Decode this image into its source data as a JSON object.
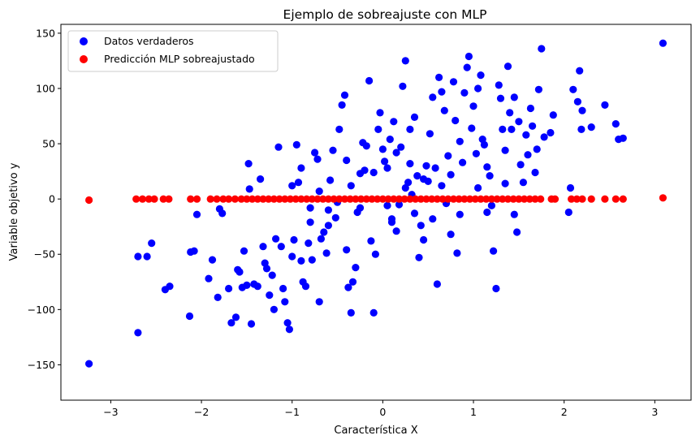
{
  "chart_data": {
    "type": "scatter",
    "title": "Ejemplo de sobreajuste con MLP",
    "xlabel": "Característica X",
    "ylabel": "Variable objetivo y",
    "xlim": [
      -3.55,
      3.4
    ],
    "ylim": [
      -182,
      158
    ],
    "xticks": [
      -3,
      -2,
      -1,
      0,
      1,
      2,
      3
    ],
    "yticks": [
      -150,
      -100,
      -50,
      0,
      50,
      100,
      150
    ],
    "xtick_labels": [
      "−3",
      "−2",
      "−1",
      "0",
      "1",
      "2",
      "3"
    ],
    "ytick_labels": [
      "−150",
      "−100",
      "−50",
      "0",
      "50",
      "100",
      "150"
    ],
    "grid": false,
    "legend_position": "top-left",
    "series": [
      {
        "name": "Datos verdaderos",
        "color": "#0000ff",
        "points": [
          [
            -3.24,
            -149
          ],
          [
            3.09,
            141
          ],
          [
            -2.7,
            -121
          ],
          [
            -2.7,
            -52
          ],
          [
            -2.6,
            -52
          ],
          [
            -2.55,
            -40
          ],
          [
            -2.4,
            -82
          ],
          [
            -2.35,
            -79
          ],
          [
            -2.13,
            -106
          ],
          [
            -2.12,
            -48
          ],
          [
            -2.08,
            -47
          ],
          [
            -2.05,
            -14
          ],
          [
            -1.92,
            -72
          ],
          [
            -1.88,
            -55
          ],
          [
            -1.82,
            -89
          ],
          [
            -1.8,
            -9
          ],
          [
            -1.77,
            -13
          ],
          [
            -1.7,
            -81
          ],
          [
            -1.67,
            -112
          ],
          [
            -1.62,
            -107
          ],
          [
            -1.6,
            -64
          ],
          [
            -1.58,
            -66
          ],
          [
            -1.55,
            -80
          ],
          [
            -1.53,
            -47
          ],
          [
            -1.5,
            -78
          ],
          [
            -1.48,
            32
          ],
          [
            -1.47,
            9
          ],
          [
            -1.45,
            -113
          ],
          [
            -1.42,
            -77
          ],
          [
            -1.38,
            -79
          ],
          [
            -1.35,
            18
          ],
          [
            -1.32,
            -43
          ],
          [
            -1.3,
            -58
          ],
          [
            -1.28,
            -63
          ],
          [
            -1.25,
            -87
          ],
          [
            -1.22,
            -69
          ],
          [
            -1.2,
            -100
          ],
          [
            -1.18,
            -36
          ],
          [
            -1.15,
            47
          ],
          [
            -1.12,
            -43
          ],
          [
            -1.1,
            -81
          ],
          [
            -1.08,
            -93
          ],
          [
            -1.05,
            -112
          ],
          [
            -1.03,
            -118
          ],
          [
            -1.0,
            -52
          ],
          [
            -0.98,
            -37
          ],
          [
            -0.95,
            49
          ],
          [
            -0.93,
            15
          ],
          [
            -0.9,
            -56
          ],
          [
            -0.88,
            -75
          ],
          [
            -0.85,
            -79
          ],
          [
            -0.82,
            -40
          ],
          [
            -0.8,
            -21
          ],
          [
            -0.78,
            -55
          ],
          [
            -0.75,
            42
          ],
          [
            -0.72,
            36
          ],
          [
            -0.7,
            -93
          ],
          [
            -0.68,
            -36
          ],
          [
            -0.65,
            -30
          ],
          [
            -0.62,
            -49
          ],
          [
            -0.6,
            -24
          ],
          [
            -0.58,
            17
          ],
          [
            -0.55,
            44
          ],
          [
            -0.52,
            -17
          ],
          [
            -0.5,
            -3
          ],
          [
            -0.48,
            63
          ],
          [
            -0.45,
            85
          ],
          [
            -0.42,
            94
          ],
          [
            -0.4,
            -46
          ],
          [
            -0.38,
            -80
          ],
          [
            -0.35,
            -103
          ],
          [
            -0.33,
            -75
          ],
          [
            -0.3,
            -62
          ],
          [
            -0.28,
            -12
          ],
          [
            -0.25,
            23
          ],
          [
            -0.22,
            51
          ],
          [
            -0.2,
            26
          ],
          [
            -0.18,
            48
          ],
          [
            -0.15,
            107
          ],
          [
            -0.13,
            -38
          ],
          [
            -0.1,
            -103
          ],
          [
            -0.08,
            -50
          ],
          [
            -0.05,
            63
          ],
          [
            -0.03,
            78
          ],
          [
            0.0,
            45
          ],
          [
            0.02,
            34
          ],
          [
            0.05,
            -6
          ],
          [
            0.08,
            54
          ],
          [
            0.1,
            -21
          ],
          [
            0.12,
            70
          ],
          [
            0.15,
            -29
          ],
          [
            0.18,
            -5
          ],
          [
            0.2,
            47
          ],
          [
            0.22,
            102
          ],
          [
            0.25,
            125
          ],
          [
            0.28,
            15
          ],
          [
            0.3,
            63
          ],
          [
            0.32,
            4
          ],
          [
            0.35,
            74
          ],
          [
            0.38,
            21
          ],
          [
            0.4,
            -53
          ],
          [
            0.42,
            -24
          ],
          [
            0.45,
            -37
          ],
          [
            0.48,
            30
          ],
          [
            0.5,
            16
          ],
          [
            0.52,
            59
          ],
          [
            0.55,
            92
          ],
          [
            0.58,
            28
          ],
          [
            0.6,
            -77
          ],
          [
            0.62,
            110
          ],
          [
            0.65,
            97
          ],
          [
            0.68,
            80
          ],
          [
            0.7,
            -4
          ],
          [
            0.72,
            39
          ],
          [
            0.75,
            -32
          ],
          [
            0.78,
            106
          ],
          [
            0.8,
            71
          ],
          [
            0.82,
            -49
          ],
          [
            0.85,
            52
          ],
          [
            0.88,
            33
          ],
          [
            0.9,
            96
          ],
          [
            0.93,
            119
          ],
          [
            0.95,
            129
          ],
          [
            0.98,
            64
          ],
          [
            1.0,
            84
          ],
          [
            1.03,
            41
          ],
          [
            1.05,
            100
          ],
          [
            1.08,
            112
          ],
          [
            1.1,
            54
          ],
          [
            1.12,
            49
          ],
          [
            1.15,
            29
          ],
          [
            1.18,
            21
          ],
          [
            1.2,
            -6
          ],
          [
            1.22,
            -47
          ],
          [
            1.25,
            -81
          ],
          [
            1.28,
            103
          ],
          [
            1.3,
            91
          ],
          [
            1.32,
            63
          ],
          [
            1.35,
            44
          ],
          [
            1.38,
            120
          ],
          [
            1.4,
            78
          ],
          [
            1.42,
            63
          ],
          [
            1.45,
            92
          ],
          [
            1.48,
            -30
          ],
          [
            1.5,
            70
          ],
          [
            1.52,
            31
          ],
          [
            1.55,
            15
          ],
          [
            1.58,
            58
          ],
          [
            1.6,
            40
          ],
          [
            1.63,
            82
          ],
          [
            1.65,
            66
          ],
          [
            1.68,
            24
          ],
          [
            1.7,
            45
          ],
          [
            1.72,
            99
          ],
          [
            1.75,
            136
          ],
          [
            1.78,
            56
          ],
          [
            1.85,
            60
          ],
          [
            1.88,
            76
          ],
          [
            2.05,
            -12
          ],
          [
            2.07,
            10
          ],
          [
            2.1,
            99
          ],
          [
            2.15,
            88
          ],
          [
            2.17,
            116
          ],
          [
            2.19,
            63
          ],
          [
            2.2,
            80
          ],
          [
            2.3,
            65
          ],
          [
            2.45,
            85
          ],
          [
            2.57,
            68
          ],
          [
            2.6,
            54
          ],
          [
            2.65,
            55
          ],
          [
            -0.9,
            28
          ],
          [
            -0.7,
            7
          ],
          [
            -0.6,
            -10
          ],
          [
            -0.35,
            12
          ],
          [
            -0.25,
            -8
          ],
          [
            0.05,
            28
          ],
          [
            0.15,
            42
          ],
          [
            0.25,
            10
          ],
          [
            0.35,
            -13
          ],
          [
            0.45,
            18
          ],
          [
            0.55,
            -18
          ],
          [
            0.65,
            12
          ],
          [
            0.75,
            22
          ],
          [
            0.85,
            -14
          ],
          [
            1.05,
            10
          ],
          [
            1.15,
            -12
          ],
          [
            1.35,
            14
          ],
          [
            1.45,
            -14
          ],
          [
            -1.0,
            12
          ],
          [
            -0.8,
            -8
          ],
          [
            -0.4,
            35
          ],
          [
            -0.1,
            24
          ],
          [
            0.1,
            -18
          ],
          [
            0.3,
            32
          ]
        ]
      },
      {
        "name": "Predicción MLP sobreajustado",
        "color": "#ff0000",
        "points": [
          [
            -3.24,
            -1
          ],
          [
            -2.72,
            0
          ],
          [
            -2.65,
            0
          ],
          [
            -2.58,
            0
          ],
          [
            -2.52,
            0
          ],
          [
            -2.42,
            0
          ],
          [
            -2.36,
            0
          ],
          [
            -2.12,
            0
          ],
          [
            -2.05,
            0
          ],
          [
            -1.9,
            0
          ],
          [
            -1.83,
            0
          ],
          [
            -1.76,
            0
          ],
          [
            -1.7,
            0
          ],
          [
            -1.63,
            0
          ],
          [
            -1.56,
            0
          ],
          [
            -1.5,
            0
          ],
          [
            -1.44,
            0
          ],
          [
            -1.38,
            0
          ],
          [
            -1.32,
            0
          ],
          [
            -1.26,
            0
          ],
          [
            -1.2,
            0
          ],
          [
            -1.14,
            0
          ],
          [
            -1.08,
            0
          ],
          [
            -1.02,
            0
          ],
          [
            -0.96,
            0
          ],
          [
            -0.9,
            0
          ],
          [
            -0.84,
            0
          ],
          [
            -0.78,
            0
          ],
          [
            -0.72,
            0
          ],
          [
            -0.66,
            0
          ],
          [
            -0.6,
            0
          ],
          [
            -0.54,
            0
          ],
          [
            -0.48,
            0
          ],
          [
            -0.42,
            0
          ],
          [
            -0.36,
            0
          ],
          [
            -0.3,
            0
          ],
          [
            -0.24,
            0
          ],
          [
            -0.18,
            0
          ],
          [
            -0.12,
            0
          ],
          [
            -0.06,
            0
          ],
          [
            0.0,
            0
          ],
          [
            0.06,
            0
          ],
          [
            0.12,
            0
          ],
          [
            0.18,
            0
          ],
          [
            0.24,
            0
          ],
          [
            0.3,
            0
          ],
          [
            0.36,
            0
          ],
          [
            0.42,
            0
          ],
          [
            0.48,
            0
          ],
          [
            0.54,
            0
          ],
          [
            0.6,
            0
          ],
          [
            0.66,
            0
          ],
          [
            0.72,
            0
          ],
          [
            0.78,
            0
          ],
          [
            0.84,
            0
          ],
          [
            0.9,
            0
          ],
          [
            0.96,
            0
          ],
          [
            1.02,
            0
          ],
          [
            1.08,
            0
          ],
          [
            1.14,
            0
          ],
          [
            1.2,
            0
          ],
          [
            1.26,
            0
          ],
          [
            1.32,
            0
          ],
          [
            1.38,
            0
          ],
          [
            1.44,
            0
          ],
          [
            1.5,
            0
          ],
          [
            1.56,
            0
          ],
          [
            1.62,
            0
          ],
          [
            1.68,
            0
          ],
          [
            1.74,
            0
          ],
          [
            1.86,
            0
          ],
          [
            1.9,
            0
          ],
          [
            2.08,
            0
          ],
          [
            2.14,
            0
          ],
          [
            2.2,
            0
          ],
          [
            2.3,
            0
          ],
          [
            2.45,
            0
          ],
          [
            2.57,
            0
          ],
          [
            2.65,
            0
          ],
          [
            3.09,
            1
          ]
        ]
      }
    ]
  }
}
